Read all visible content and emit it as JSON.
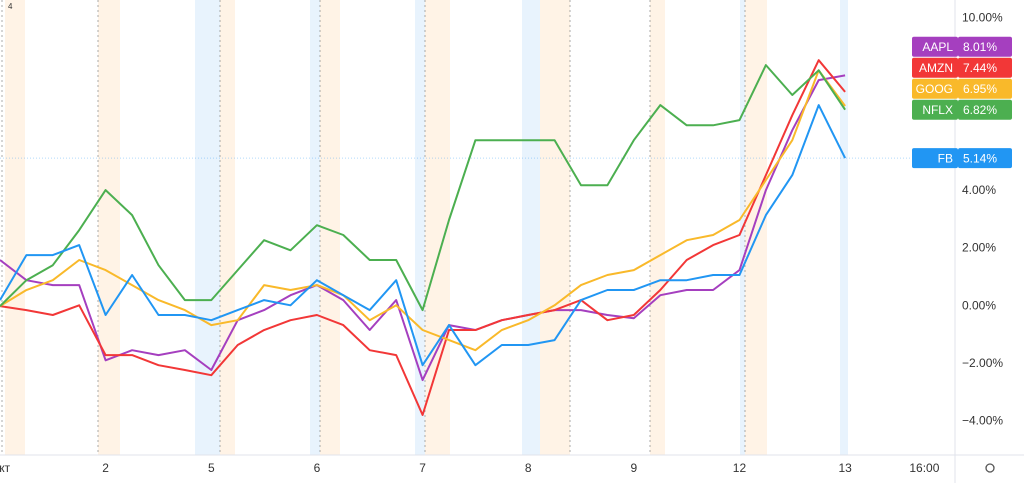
{
  "chart_data": {
    "type": "line",
    "corner_label": "4",
    "x": [
      0,
      0.25,
      0.5,
      0.75,
      1,
      1.25,
      1.5,
      1.75,
      2,
      2.25,
      2.5,
      2.75,
      3,
      3.25,
      3.5,
      3.75,
      4,
      4.25,
      4.5,
      4.75,
      5,
      5.25,
      5.5,
      5.75,
      6,
      6.25,
      6.5,
      6.75,
      7,
      7.25,
      7.5,
      7.75,
      8
    ],
    "xlim": [
      0,
      9.04
    ],
    "xticks": [
      {
        "value": 0,
        "label": "Окт"
      },
      {
        "value": 1,
        "label": "2"
      },
      {
        "value": 2,
        "label": "5"
      },
      {
        "value": 3,
        "label": "6"
      },
      {
        "value": 4,
        "label": "7"
      },
      {
        "value": 5,
        "label": "8"
      },
      {
        "value": 6,
        "label": "9"
      },
      {
        "value": 7,
        "label": "12"
      },
      {
        "value": 8,
        "label": "13"
      },
      {
        "value": 8.75,
        "label": "16:00"
      }
    ],
    "ylim": [
      -5.17,
      10.63
    ],
    "yticks": [
      {
        "value": -4,
        "label": "−4.00%"
      },
      {
        "value": -2,
        "label": "−2.00%"
      },
      {
        "value": 0,
        "label": "0.00%"
      },
      {
        "value": 2,
        "label": "2.00%"
      },
      {
        "value": 4,
        "label": "4.00%"
      },
      {
        "value": 10,
        "label": "10.00%"
      }
    ],
    "grid": false,
    "series": [
      {
        "name": "AAPL",
        "label": "8.01%",
        "color": "#a53fbf",
        "values": [
          1.6,
          0.9,
          0.73,
          0.73,
          -1.88,
          -1.53,
          -1.7,
          -1.53,
          -2.22,
          -0.49,
          -0.14,
          0.38,
          0.73,
          0.21,
          -0.83,
          0.21,
          -2.57,
          -0.66,
          -0.83,
          -0.49,
          -0.31,
          -0.14,
          -0.14,
          -0.31,
          -0.42,
          0.38,
          0.56,
          0.56,
          1.25,
          4.03,
          6.11,
          7.85,
          8.01
        ]
      },
      {
        "name": "AMZN",
        "label": "7.44%",
        "color": "#f23737",
        "values": [
          0,
          -0.14,
          -0.31,
          0.03,
          -1.7,
          -1.7,
          -2.05,
          -2.22,
          -2.4,
          -1.35,
          -0.83,
          -0.49,
          -0.31,
          -0.66,
          -1.53,
          -1.7,
          -3.78,
          -0.83,
          -0.83,
          -0.49,
          -0.31,
          -0.14,
          0.21,
          -0.49,
          -0.31,
          0.56,
          1.6,
          2.12,
          2.47,
          4.55,
          6.63,
          8.54,
          7.44
        ]
      },
      {
        "name": "GOOG",
        "label": "6.95%",
        "color": "#f9b92a",
        "values": [
          0,
          0.56,
          0.9,
          1.6,
          1.25,
          0.73,
          0.21,
          -0.14,
          -0.66,
          -0.49,
          0.73,
          0.56,
          0.73,
          0.38,
          -0.49,
          0.03,
          -0.83,
          -1.18,
          -1.53,
          -0.83,
          -0.49,
          0.03,
          0.73,
          1.08,
          1.25,
          1.77,
          2.29,
          2.47,
          2.99,
          4.38,
          5.76,
          8.19,
          6.95
        ]
      },
      {
        "name": "NFLX",
        "label": "6.82%",
        "color": "#4caf50",
        "values": [
          0,
          0.9,
          1.42,
          2.64,
          4.03,
          3.16,
          1.42,
          0.21,
          0.21,
          1.25,
          2.29,
          1.94,
          2.81,
          2.47,
          1.6,
          1.6,
          -0.14,
          2.99,
          5.76,
          5.76,
          5.76,
          5.76,
          4.2,
          4.2,
          5.76,
          6.98,
          6.28,
          6.28,
          6.46,
          8.37,
          7.33,
          8.19,
          6.82
        ]
      },
      {
        "name": "FB",
        "label": "5.14%",
        "color": "#2196f3",
        "values": [
          0.21,
          1.77,
          1.77,
          2.12,
          -0.31,
          1.08,
          -0.31,
          -0.31,
          -0.49,
          -0.14,
          0.21,
          0.03,
          0.9,
          0.38,
          -0.14,
          0.9,
          -2.05,
          -0.66,
          -2.05,
          -1.35,
          -1.35,
          -1.18,
          0.21,
          0.56,
          0.56,
          0.9,
          0.9,
          1.08,
          1.08,
          3.16,
          4.55,
          6.98,
          5.14
        ]
      }
    ]
  }
}
